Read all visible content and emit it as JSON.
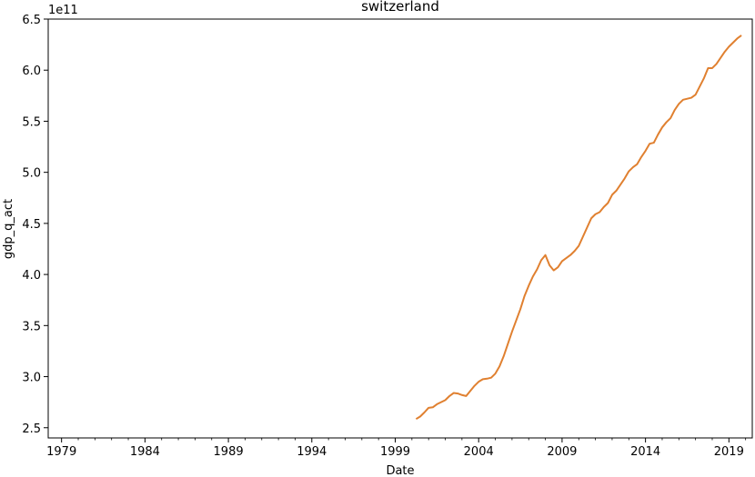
{
  "chart_data": {
    "type": "line",
    "title": "switzerland",
    "xlabel": "Date",
    "ylabel": "gdp_q_act",
    "y_offset_label": "1e11",
    "y_multiplier": 100000000000,
    "xlim": [
      1978.2,
      2020.4
    ],
    "ylim": [
      2.4,
      6.5
    ],
    "grid": false,
    "x_ticks": [
      1979,
      1984,
      1989,
      1994,
      1999,
      2004,
      2009,
      2014,
      2019
    ],
    "y_ticks": [
      2.5,
      3.0,
      3.5,
      4.0,
      4.5,
      5.0,
      5.5,
      6.0,
      6.5
    ],
    "y_tick_labels": [
      "2.5",
      "3.0",
      "3.5",
      "4.0",
      "4.5",
      "5.0",
      "5.5",
      "6.0",
      "6.5"
    ],
    "series": [
      {
        "name": "",
        "color": "#e08030",
        "points": [
          [
            2000.25,
            2.585
          ],
          [
            2000.5,
            2.61
          ],
          [
            2000.75,
            2.65
          ],
          [
            2001.0,
            2.695
          ],
          [
            2001.25,
            2.7
          ],
          [
            2001.5,
            2.73
          ],
          [
            2001.75,
            2.75
          ],
          [
            2002.0,
            2.77
          ],
          [
            2002.25,
            2.81
          ],
          [
            2002.5,
            2.84
          ],
          [
            2002.75,
            2.835
          ],
          [
            2003.0,
            2.82
          ],
          [
            2003.25,
            2.81
          ],
          [
            2003.5,
            2.86
          ],
          [
            2003.75,
            2.91
          ],
          [
            2004.0,
            2.95
          ],
          [
            2004.25,
            2.975
          ],
          [
            2004.5,
            2.98
          ],
          [
            2004.75,
            2.99
          ],
          [
            2005.0,
            3.03
          ],
          [
            2005.25,
            3.1
          ],
          [
            2005.5,
            3.2
          ],
          [
            2005.75,
            3.32
          ],
          [
            2006.0,
            3.44
          ],
          [
            2006.25,
            3.55
          ],
          [
            2006.5,
            3.66
          ],
          [
            2006.75,
            3.79
          ],
          [
            2007.0,
            3.89
          ],
          [
            2007.25,
            3.98
          ],
          [
            2007.5,
            4.05
          ],
          [
            2007.75,
            4.14
          ],
          [
            2008.0,
            4.19
          ],
          [
            2008.25,
            4.09
          ],
          [
            2008.5,
            4.04
          ],
          [
            2008.75,
            4.07
          ],
          [
            2009.0,
            4.13
          ],
          [
            2009.25,
            4.16
          ],
          [
            2009.5,
            4.19
          ],
          [
            2009.75,
            4.23
          ],
          [
            2010.0,
            4.28
          ],
          [
            2010.25,
            4.37
          ],
          [
            2010.5,
            4.46
          ],
          [
            2010.75,
            4.55
          ],
          [
            2011.0,
            4.59
          ],
          [
            2011.25,
            4.61
          ],
          [
            2011.5,
            4.66
          ],
          [
            2011.75,
            4.7
          ],
          [
            2012.0,
            4.78
          ],
          [
            2012.25,
            4.82
          ],
          [
            2012.5,
            4.88
          ],
          [
            2012.75,
            4.94
          ],
          [
            2013.0,
            5.01
          ],
          [
            2013.25,
            5.05
          ],
          [
            2013.5,
            5.08
          ],
          [
            2013.75,
            5.15
          ],
          [
            2014.0,
            5.21
          ],
          [
            2014.25,
            5.28
          ],
          [
            2014.5,
            5.29
          ],
          [
            2014.75,
            5.37
          ],
          [
            2015.0,
            5.44
          ],
          [
            2015.25,
            5.49
          ],
          [
            2015.5,
            5.53
          ],
          [
            2015.75,
            5.61
          ],
          [
            2016.0,
            5.67
          ],
          [
            2016.25,
            5.71
          ],
          [
            2016.5,
            5.72
          ],
          [
            2016.75,
            5.73
          ],
          [
            2017.0,
            5.76
          ],
          [
            2017.25,
            5.84
          ],
          [
            2017.5,
            5.92
          ],
          [
            2017.75,
            6.02
          ],
          [
            2018.0,
            6.02
          ],
          [
            2018.25,
            6.06
          ],
          [
            2018.5,
            6.12
          ],
          [
            2018.75,
            6.18
          ],
          [
            2019.0,
            6.23
          ],
          [
            2019.25,
            6.27
          ],
          [
            2019.5,
            6.31
          ],
          [
            2019.75,
            6.34
          ]
        ]
      }
    ]
  }
}
